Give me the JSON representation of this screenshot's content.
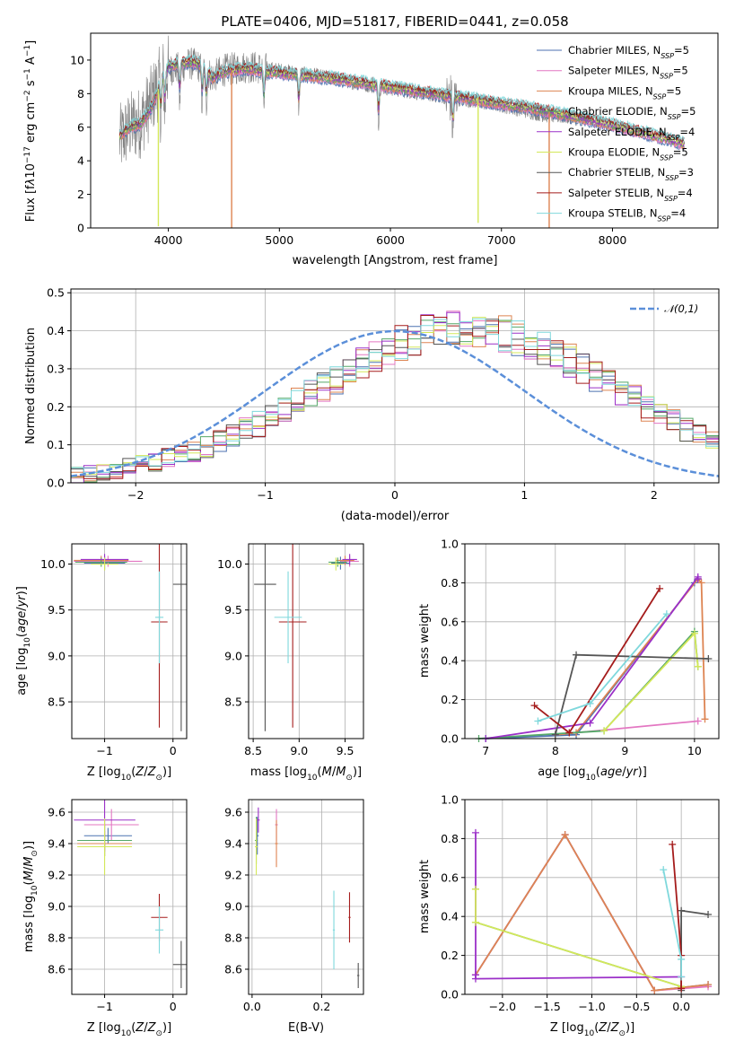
{
  "figure_title": "PLATE=0406, MJD=51817, FIBERID=0441, z=0.058",
  "series": [
    {
      "name": "Chabrier MILES",
      "color": "#4c72b0"
    },
    {
      "name": "Salpeter MILES",
      "color": "#e377c2"
    },
    {
      "name": "Kroupa MILES",
      "color": "#dd8452"
    },
    {
      "name": "Chabrier ELODIE",
      "color": "#55a868"
    },
    {
      "name": "Salpeter ELODIE",
      "color": "#9b30c8"
    },
    {
      "name": "Kroupa ELODIE",
      "color": "#d4e85a"
    },
    {
      "name": "Chabrier STELIB",
      "color": "#555555"
    },
    {
      "name": "Salpeter STELIB",
      "color": "#a51c1c"
    },
    {
      "name": "Kroupa STELIB",
      "color": "#7fd8dc"
    }
  ],
  "chart_data": [
    {
      "id": "spectrum",
      "type": "line",
      "title": "PLATE=0406, MJD=51817, FIBERID=0441, z=0.058",
      "xlabel": "wavelength [Angstrom, rest frame]",
      "ylabel": "Flux [f_λ 10^-17 erg cm^-2 s^-1 A^-1]",
      "xlim": [
        3300,
        8950
      ],
      "ylim": [
        0,
        11.6
      ],
      "xticks": [
        4000,
        5000,
        6000,
        7000,
        8000
      ],
      "yticks": [
        0,
        2,
        4,
        6,
        8,
        10
      ],
      "legend_loc": "upper right",
      "legend": [
        {
          "name": "Chabrier MILES",
          "nssp": "5"
        },
        {
          "name": "Salpeter MILES",
          "nssp": "5"
        },
        {
          "name": "Kroupa MILES",
          "nssp": "5"
        },
        {
          "name": "Chabrier ELODIE",
          "nssp": "5"
        },
        {
          "name": "Salpeter ELODIE",
          "nssp": "4"
        },
        {
          "name": "Kroupa ELODIE",
          "nssp": "5"
        },
        {
          "name": "Chabrier STELIB",
          "nssp": "3"
        },
        {
          "name": "Salpeter STELIB",
          "nssp": "4"
        },
        {
          "name": "Kroupa STELIB",
          "nssp": "4"
        }
      ],
      "data_envelope": {
        "x": [
          3560,
          3650,
          3750,
          3850,
          3950,
          4000,
          4100,
          4200,
          4300,
          4400,
          4500,
          4700,
          4900,
          5200,
          5500,
          5800,
          6100,
          6400,
          6600,
          6800,
          7000,
          7200,
          7400,
          7600,
          7800,
          7900
        ],
        "y": [
          5.2,
          6.0,
          6.3,
          7.6,
          9.2,
          9.4,
          9.6,
          9.8,
          9.6,
          9.0,
          9.4,
          9.6,
          9.5,
          9.2,
          8.9,
          8.5,
          8.2,
          7.9,
          7.7,
          7.5,
          7.3,
          7.0,
          6.7,
          6.6,
          6.4,
          6.3
        ]
      },
      "model_envelope": {
        "x": [
          3560,
          3650,
          3750,
          3850,
          3950,
          4000,
          4100,
          4200,
          4300,
          4400,
          4500,
          4700,
          4900,
          5200,
          5500,
          5800,
          6100,
          6400,
          6700,
          7000,
          7300,
          7600,
          7900,
          8200,
          8500,
          8650
        ],
        "y": [
          5.4,
          6.0,
          6.2,
          7.2,
          9.0,
          9.6,
          9.8,
          9.9,
          9.7,
          8.9,
          9.3,
          9.5,
          9.3,
          9.1,
          8.9,
          8.6,
          8.3,
          8.0,
          7.7,
          7.4,
          7.1,
          6.7,
          6.3,
          5.8,
          5.3,
          5.0
        ]
      },
      "absorption_features": [
        3934,
        3969,
        4102,
        4304,
        4341,
        4861,
        5175,
        5893,
        6563
      ],
      "spikes": [
        {
          "x": 3910,
          "y": 0.1,
          "series": "Kroupa ELODIE"
        },
        {
          "x": 4570,
          "y": 0.0,
          "series": "Kroupa MILES"
        },
        {
          "x": 6790,
          "y": 0.3,
          "series": "Kroupa ELODIE"
        },
        {
          "x": 7430,
          "y": 0.0,
          "series": "Kroupa MILES"
        }
      ]
    },
    {
      "id": "residuals",
      "type": "line",
      "xlabel": "(data-model)/error",
      "ylabel": "Normed distribution",
      "xlim": [
        -2.5,
        2.5
      ],
      "ylim": [
        0,
        0.51
      ],
      "xticks": [
        -2,
        -1,
        0,
        1,
        2
      ],
      "yticks": [
        0.0,
        0.1,
        0.2,
        0.3,
        0.4,
        0.5
      ],
      "curve_label": "𝒩(0,1)",
      "bin_width": 0.1,
      "hist_base": [
        0.02,
        0.023,
        0.028,
        0.034,
        0.04,
        0.048,
        0.056,
        0.064,
        0.073,
        0.083,
        0.095,
        0.108,
        0.122,
        0.138,
        0.155,
        0.173,
        0.192,
        0.212,
        0.232,
        0.253,
        0.274,
        0.295,
        0.316,
        0.336,
        0.354,
        0.37,
        0.384,
        0.395,
        0.403,
        0.407,
        0.407,
        0.405,
        0.4,
        0.392,
        0.383,
        0.371,
        0.356,
        0.34,
        0.322,
        0.303,
        0.283,
        0.262,
        0.241,
        0.22,
        0.199,
        0.179,
        0.16,
        0.142,
        0.126,
        0.111,
        0.097
      ]
    },
    {
      "id": "age-vs-Z",
      "type": "scatter",
      "xlabel": "Z [log10(Z/Z⊙)]",
      "ylabel": "age  [log10(age/yr)]",
      "xlim": [
        -1.48,
        0.2
      ],
      "ylim": [
        8.1,
        10.22
      ],
      "xticks": [
        -1,
        0
      ],
      "yticks": [
        8.5,
        9.0,
        9.5,
        10.0
      ],
      "points": [
        {
          "s": "Chabrier MILES",
          "x": -1.0,
          "y": 10.01,
          "xerr": 0.3,
          "yerr": 0.07
        },
        {
          "s": "Salpeter MILES",
          "x": -0.95,
          "y": 10.03,
          "xerr": 0.5,
          "yerr": 0.06
        },
        {
          "s": "Kroupa MILES",
          "x": -1.05,
          "y": 10.04,
          "xerr": 0.4,
          "yerr": 0.05
        },
        {
          "s": "Chabrier ELODIE",
          "x": -1.05,
          "y": 10.02,
          "xerr": 0.38,
          "yerr": 0.05
        },
        {
          "s": "Salpeter ELODIE",
          "x": -1.0,
          "y": 10.05,
          "xerr": 0.35,
          "yerr": 0.06
        },
        {
          "s": "Kroupa ELODIE",
          "x": -1.0,
          "y": 10.0,
          "xerr": 0.2,
          "yerr": 0.07
        },
        {
          "s": "Chabrier STELIB",
          "x": 0.12,
          "y": 9.78,
          "xerr": 0.12,
          "yerr": 1.6
        },
        {
          "s": "Salpeter STELIB",
          "x": -0.2,
          "y": 9.37,
          "xerr": 0.12,
          "yerr": 1.15
        },
        {
          "s": "Kroupa STELIB",
          "x": -0.2,
          "y": 9.42,
          "xerr": 0.06,
          "yerr": 0.5
        }
      ]
    },
    {
      "id": "age-vs-mass",
      "type": "scatter",
      "xlabel": "mass [log10(M/M⊙)]",
      "ylabel": "",
      "xlim": [
        8.45,
        9.7
      ],
      "ylim": [
        8.1,
        10.22
      ],
      "xticks": [
        8.5,
        9.0,
        9.5
      ],
      "yticks": [
        8.5,
        9.0,
        9.5,
        10.0
      ],
      "points": [
        {
          "s": "Chabrier MILES",
          "x": 9.45,
          "y": 10.01,
          "xerr": 0.1,
          "yerr": 0.07
        },
        {
          "s": "Salpeter MILES",
          "x": 9.55,
          "y": 10.03,
          "xerr": 0.1,
          "yerr": 0.06
        },
        {
          "s": "Kroupa MILES",
          "x": 9.5,
          "y": 10.04,
          "xerr": 0.1,
          "yerr": 0.05
        },
        {
          "s": "Chabrier ELODIE",
          "x": 9.42,
          "y": 10.02,
          "xerr": 0.1,
          "yerr": 0.05
        },
        {
          "s": "Salpeter ELODIE",
          "x": 9.55,
          "y": 10.05,
          "xerr": 0.08,
          "yerr": 0.06
        },
        {
          "s": "Kroupa ELODIE",
          "x": 9.4,
          "y": 10.0,
          "xerr": 0.08,
          "yerr": 0.07
        },
        {
          "s": "Chabrier STELIB",
          "x": 8.63,
          "y": 9.78,
          "xerr": 0.12,
          "yerr": 1.6
        },
        {
          "s": "Salpeter STELIB",
          "x": 8.93,
          "y": 9.37,
          "xerr": 0.15,
          "yerr": 1.15
        },
        {
          "s": "Kroupa STELIB",
          "x": 8.88,
          "y": 9.42,
          "xerr": 0.15,
          "yerr": 0.5
        }
      ]
    },
    {
      "id": "massweight-vs-age",
      "type": "line",
      "xlabel": "age  [log10(age/yr)]",
      "ylabel": "mass weight",
      "xlim": [
        6.7,
        10.35
      ],
      "ylim": [
        0,
        1
      ],
      "xticks": [
        7,
        8,
        9,
        10
      ],
      "yticks": [
        0.0,
        0.2,
        0.4,
        0.6,
        0.8,
        1.0
      ],
      "lines": [
        {
          "s": "Chabrier MILES",
          "x": [
            7.0,
            8.3,
            10.0,
            10.05
          ],
          "y": [
            0.0,
            0.02,
            0.8,
            0.82
          ]
        },
        {
          "s": "Salpeter MILES",
          "x": [
            8.0,
            10.05
          ],
          "y": [
            0.02,
            0.09
          ]
        },
        {
          "s": "Kroupa MILES",
          "x": [
            8.0,
            8.3,
            10.05,
            10.1,
            10.15
          ],
          "y": [
            0.02,
            0.03,
            0.82,
            0.8,
            0.1
          ]
        },
        {
          "s": "Chabrier ELODIE",
          "x": [
            6.9,
            8.7,
            10.0,
            10.05
          ],
          "y": [
            0.0,
            0.04,
            0.55,
            0.37
          ]
        },
        {
          "s": "Salpeter ELODIE",
          "x": [
            7.0,
            8.5,
            10.05,
            10.05
          ],
          "y": [
            0.0,
            0.08,
            0.83,
            0.82
          ]
        },
        {
          "s": "Kroupa ELODIE",
          "x": [
            8.7,
            10.0,
            10.05
          ],
          "y": [
            0.04,
            0.54,
            0.37
          ]
        },
        {
          "s": "Chabrier STELIB",
          "x": [
            8.0,
            8.3,
            10.2
          ],
          "y": [
            0.02,
            0.43,
            0.41
          ]
        },
        {
          "s": "Salpeter STELIB",
          "x": [
            7.7,
            8.2,
            9.5
          ],
          "y": [
            0.17,
            0.03,
            0.77
          ]
        },
        {
          "s": "Kroupa STELIB",
          "x": [
            7.75,
            8.5,
            9.6
          ],
          "y": [
            0.09,
            0.18,
            0.64
          ]
        }
      ]
    },
    {
      "id": "mass-vs-Z",
      "type": "scatter",
      "xlabel": "Z [log10(Z/Z⊙)]",
      "ylabel": "mass [log10(M/M⊙)]",
      "xlim": [
        -1.48,
        0.2
      ],
      "ylim": [
        8.44,
        9.68
      ],
      "xticks": [
        -1,
        0
      ],
      "yticks": [
        8.6,
        8.8,
        9.0,
        9.2,
        9.4,
        9.6
      ],
      "points": [
        {
          "s": "Chabrier MILES",
          "x": -0.95,
          "y": 9.45,
          "xerr": 0.35,
          "yerr": 0.05
        },
        {
          "s": "Salpeter MILES",
          "x": -0.9,
          "y": 9.52,
          "xerr": 0.4,
          "yerr": 0.1
        },
        {
          "s": "Kroupa MILES",
          "x": -1.0,
          "y": 9.4,
          "xerr": 0.4,
          "yerr": 0.08
        },
        {
          "s": "Chabrier ELODIE",
          "x": -1.0,
          "y": 9.42,
          "xerr": 0.4,
          "yerr": 0.1
        },
        {
          "s": "Salpeter ELODIE",
          "x": -1.0,
          "y": 9.55,
          "xerr": 0.45,
          "yerr": 0.2
        },
        {
          "s": "Kroupa ELODIE",
          "x": -1.0,
          "y": 9.38,
          "xerr": 0.4,
          "yerr": 0.18
        },
        {
          "s": "Chabrier STELIB",
          "x": 0.12,
          "y": 8.63,
          "xerr": 0.12,
          "yerr": 0.15
        },
        {
          "s": "Salpeter STELIB",
          "x": -0.2,
          "y": 8.93,
          "xerr": 0.12,
          "yerr": 0.15
        },
        {
          "s": "Kroupa STELIB",
          "x": -0.2,
          "y": 8.85,
          "xerr": 0.06,
          "yerr": 0.15
        }
      ]
    },
    {
      "id": "mass-vs-EBV",
      "type": "scatter",
      "xlabel": "E(B-V)",
      "ylabel": "",
      "xlim": [
        -0.01,
        0.32
      ],
      "ylim": [
        8.44,
        9.68
      ],
      "xticks": [
        0.0,
        0.2
      ],
      "yticks": [
        8.6,
        8.8,
        9.0,
        9.2,
        9.4,
        9.6
      ],
      "points": [
        {
          "s": "Chabrier MILES",
          "x": 0.015,
          "y": 9.45,
          "xerr": 0.004,
          "yerr": 0.12
        },
        {
          "s": "Salpeter MILES",
          "x": 0.07,
          "y": 9.52,
          "xerr": 0.004,
          "yerr": 0.1
        },
        {
          "s": "Kroupa MILES",
          "x": 0.07,
          "y": 9.4,
          "xerr": 0.004,
          "yerr": 0.15
        },
        {
          "s": "Chabrier ELODIE",
          "x": 0.012,
          "y": 9.42,
          "xerr": 0.004,
          "yerr": 0.15
        },
        {
          "s": "Salpeter ELODIE",
          "x": 0.018,
          "y": 9.55,
          "xerr": 0.004,
          "yerr": 0.08
        },
        {
          "s": "Kroupa ELODIE",
          "x": 0.012,
          "y": 9.38,
          "xerr": 0.004,
          "yerr": 0.18
        },
        {
          "s": "Chabrier STELIB",
          "x": 0.305,
          "y": 8.56,
          "xerr": 0.003,
          "yerr": 0.08
        },
        {
          "s": "Salpeter STELIB",
          "x": 0.28,
          "y": 8.93,
          "xerr": 0.003,
          "yerr": 0.16
        },
        {
          "s": "Kroupa STELIB",
          "x": 0.235,
          "y": 8.85,
          "xerr": 0.003,
          "yerr": 0.25
        }
      ]
    },
    {
      "id": "massweight-vs-Z",
      "type": "line",
      "xlabel": "Z [log10(Z/Z⊙)]",
      "ylabel": "mass weight",
      "xlim": [
        -2.42,
        0.42
      ],
      "ylim": [
        0,
        1
      ],
      "xticks": [
        -2.0,
        -1.5,
        -1.0,
        -0.5,
        0.0
      ],
      "yticks": [
        0.0,
        0.2,
        0.4,
        0.6,
        0.8,
        1.0
      ],
      "lines": [
        {
          "s": "Chabrier MILES",
          "x": [
            -2.3,
            -1.3,
            -0.3,
            0.3
          ],
          "y": [
            0.1,
            0.82,
            0.02,
            0.05
          ]
        },
        {
          "s": "Salpeter MILES",
          "x": [
            -2.3,
            -1.3,
            -0.3,
            0.3
          ],
          "y": [
            0.1,
            0.82,
            0.02,
            0.04
          ]
        },
        {
          "s": "Kroupa MILES",
          "x": [
            -2.3,
            -1.3,
            -0.3,
            0.3
          ],
          "y": [
            0.1,
            0.82,
            0.02,
            0.05
          ]
        },
        {
          "s": "Chabrier ELODIE",
          "x": [
            -2.3,
            -2.3,
            0.0
          ],
          "y": [
            0.54,
            0.37,
            0.04
          ]
        },
        {
          "s": "Salpeter ELODIE",
          "x": [
            -2.3,
            -2.3,
            -2.3,
            0.0
          ],
          "y": [
            0.83,
            0.1,
            0.08,
            0.09
          ]
        },
        {
          "s": "Kroupa ELODIE",
          "x": [
            -2.3,
            -2.3,
            0.0
          ],
          "y": [
            0.54,
            0.37,
            0.04
          ]
        },
        {
          "s": "Chabrier STELIB",
          "x": [
            0.0,
            0.0,
            0.3
          ],
          "y": [
            0.02,
            0.43,
            0.41
          ]
        },
        {
          "s": "Salpeter STELIB",
          "x": [
            -0.1,
            0.0,
            0.0
          ],
          "y": [
            0.77,
            0.2,
            0.03
          ]
        },
        {
          "s": "Kroupa STELIB",
          "x": [
            -0.2,
            0.0,
            0.0
          ],
          "y": [
            0.64,
            0.18,
            0.09
          ]
        }
      ]
    }
  ]
}
